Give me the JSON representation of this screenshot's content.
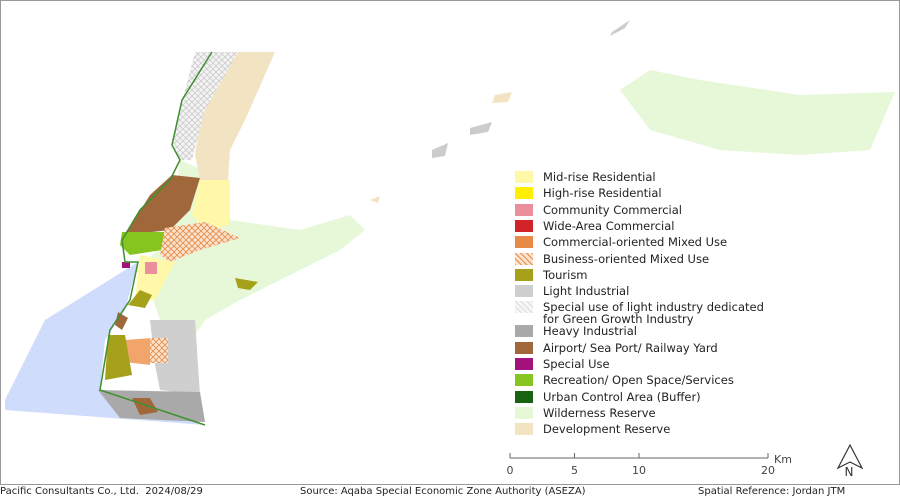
{
  "legend": [
    {
      "label": "Mid-rise Residential",
      "color": "#fff8a8"
    },
    {
      "label": "High-rise Residential",
      "color": "#ffef00"
    },
    {
      "label": "Community Commercial",
      "color": "#ec8f9c"
    },
    {
      "label": "Wide-Area Commercial",
      "color": "#d3232a"
    },
    {
      "label": "Commercial-oriented Mixed Use",
      "color": "#e88a45"
    },
    {
      "label": "Business-oriented Mixed Use",
      "color": "#f2a56a"
    },
    {
      "label": "Tourism",
      "color": "#a6a11a"
    },
    {
      "label": "Light Industrial",
      "color": "#cfcfcf"
    },
    {
      "label": "Special use of light industry dedicated\nfor Green Growth Industry",
      "color": "#eeeeee"
    },
    {
      "label": "Heavy Industrial",
      "color": "#a9a9a9"
    },
    {
      "label": "Airport/ Sea Port/ Railway Yard",
      "color": "#a0673a"
    },
    {
      "label": "Special Use",
      "color": "#a3127c"
    },
    {
      "label": "Recreation/ Open Space/Services",
      "color": "#86c41f"
    },
    {
      "label": "Urban Control Area (Buffer)",
      "color": "#17630f"
    },
    {
      "label": "Wilderness Reserve",
      "color": "#e7f8d8"
    },
    {
      "label": "Development Reserve",
      "color": "#f2e3c2"
    }
  ],
  "scale_bar": {
    "ticks": [
      0,
      5,
      10,
      20
    ],
    "unit": "Km"
  },
  "north_arrow": "N",
  "footer": {
    "credit": "Pacific Consultants Co., Ltd.  2024/08/29",
    "source": "Source: Aqaba Special Economic Zone Authority (ASEZA)",
    "reference": "Spatial Reference: Jordan JTM"
  }
}
